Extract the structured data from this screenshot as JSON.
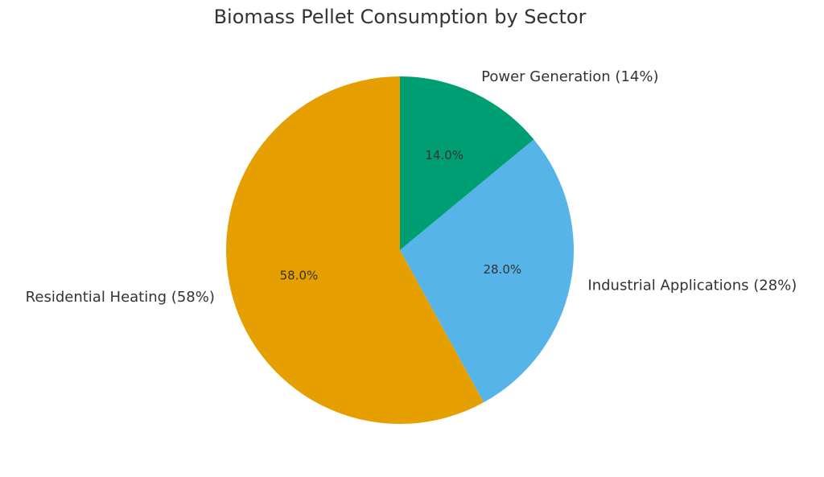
{
  "chart_data": {
    "type": "pie",
    "title": "Biomass Pellet Consumption by Sector",
    "categories": [
      "Power Generation (14%)",
      "Industrial Applications (28%)",
      "Residential Heating (58%)"
    ],
    "values": [
      14,
      28,
      58
    ],
    "value_labels": [
      "14.0%",
      "28.0%",
      "58.0%"
    ],
    "colors": [
      "#009e73",
      "#56b4e9",
      "#e69f00"
    ]
  }
}
